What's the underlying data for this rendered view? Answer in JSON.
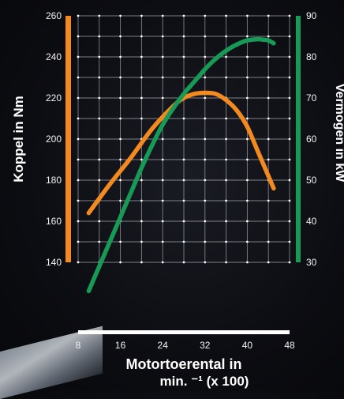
{
  "chart_data": {
    "type": "line",
    "xlabel": "Motortoerental in",
    "xlabel_line2": "min. ⁻¹ (x 100)",
    "ylabel_left": "Koppel in Nm",
    "ylabel_right": "Vermogen in kW",
    "x_ticks": [
      "8",
      "16",
      "24",
      "32",
      "40",
      "48"
    ],
    "y_left_ticks": [
      "260",
      "240",
      "220",
      "200",
      "180",
      "160",
      "140"
    ],
    "y_right_ticks": [
      "90",
      "80",
      "70",
      "60",
      "50",
      "40",
      "30"
    ],
    "xlim": [
      8,
      48
    ],
    "ylim_left": [
      140,
      260
    ],
    "ylim_right": [
      30,
      90
    ],
    "grid": true,
    "axis_colors": {
      "left": "#f28a1f",
      "right": "#169a55",
      "bottom": "#ffffff"
    },
    "series": [
      {
        "axis": "left",
        "color": "#f28a1f",
        "x": [
          10,
          14,
          18,
          22,
          26,
          28,
          30,
          32,
          34,
          36,
          38,
          40,
          42,
          44,
          45
        ],
        "y": [
          164,
          178,
          191,
          205,
          216,
          220,
          222,
          222.5,
          222,
          219,
          214,
          206,
          194,
          182,
          176
        ]
      },
      {
        "axis": "right",
        "color": "#169a55",
        "x": [
          10,
          12,
          14,
          16,
          18,
          20,
          22,
          24,
          26,
          28,
          30,
          32,
          34,
          36,
          38,
          40,
          42,
          43,
          44,
          45
        ],
        "y": [
          23,
          29,
          35,
          41,
          47,
          53,
          58.5,
          63.5,
          67.5,
          71,
          74,
          77,
          79.5,
          81.5,
          83,
          84,
          84.3,
          84.2,
          84,
          83.3
        ]
      }
    ]
  }
}
